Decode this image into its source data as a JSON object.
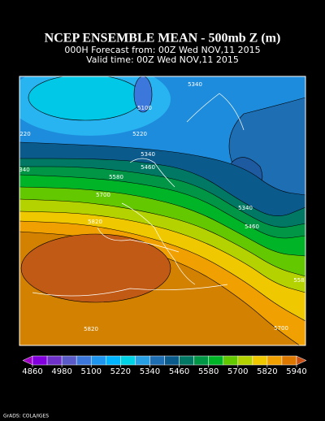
{
  "title": "NCEP ENSEMBLE MEAN - 500mb Z (m)",
  "subtitle_lines": [
    "000H Forecast from: 00Z Wed NOV,11 2015",
    "Valid time: 00Z Wed NOV,11 2015"
  ],
  "contour_labels": [
    "5340",
    "5100",
    "5220",
    "220",
    "5340",
    "5460",
    "340",
    "5580",
    "5700",
    "5340",
    "5460",
    "5820",
    "558",
    "5820",
    "5700"
  ],
  "colorbar": {
    "ticks": [
      4860,
      4980,
      5100,
      5220,
      5340,
      5460,
      5580,
      5700,
      5820,
      5940
    ],
    "colors": [
      "#a000c8",
      "#8200dc",
      "#6e32c8",
      "#5a5ac8",
      "#3c78dc",
      "#1e96f0",
      "#00b4ff",
      "#00d2e6",
      "#28a0e6",
      "#1e6eb4",
      "#0a5a8c",
      "#007864",
      "#009646",
      "#00b428",
      "#64c800",
      "#b4d200",
      "#f0c800",
      "#f0a000",
      "#dc7800",
      "#c85014"
    ]
  },
  "credit": "GrADS: COLA/IGES"
}
